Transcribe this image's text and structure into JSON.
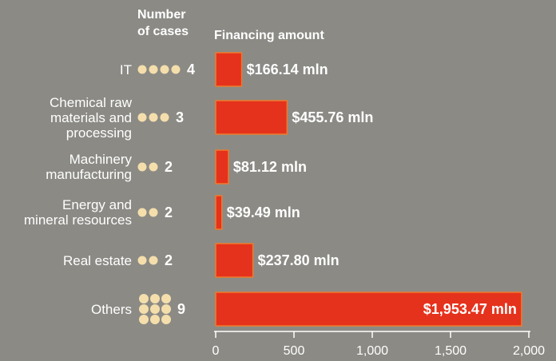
{
  "chart_data": {
    "type": "bar",
    "cases_header": "Number of cases",
    "amount_header": "Financing amount",
    "categories": [
      "IT",
      "Chemical raw materials and processing",
      "Machinery manufacturing",
      "Energy and mineral resources",
      "Real estate",
      "Others"
    ],
    "cases": [
      4,
      3,
      2,
      2,
      2,
      9
    ],
    "values": [
      166.14,
      455.76,
      81.12,
      39.49,
      237.8,
      1953.47
    ],
    "value_labels": [
      "$166.14 mln",
      "$455.76 mln",
      "$81.12 mln",
      "$39.49 mln",
      "$237.80 mln",
      "$1,953.47 mln"
    ],
    "color": "#e5321c",
    "dot_color": "#f4deab",
    "xlim": [
      0,
      2000
    ],
    "xticks": [
      0,
      500,
      {
        "value": 1000,
        "label": "1,000"
      },
      {
        "value": 1500,
        "label": "1,500"
      },
      {
        "value": 2000,
        "label": "2,000"
      }
    ]
  }
}
